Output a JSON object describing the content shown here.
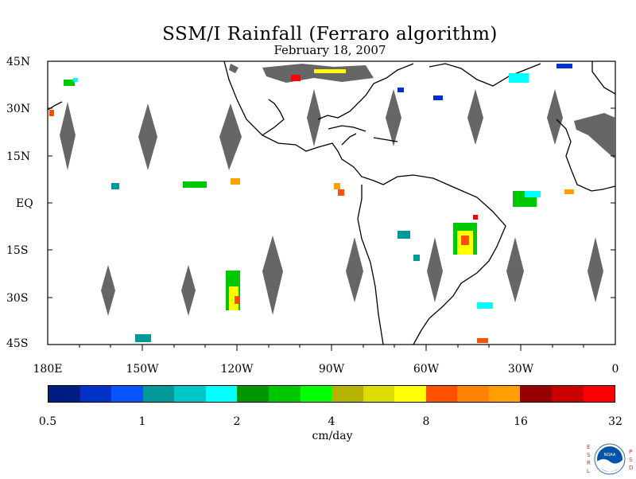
{
  "title": "SSM/I Rainfall (Ferraro algorithm)",
  "date": "February 18, 2007",
  "lat_labels": [
    "45N",
    "30N",
    "15N",
    "EQ",
    "15S",
    "30S",
    "45S"
  ],
  "lon_labels": [
    "180E",
    "150W",
    "120W",
    "90W",
    "60W",
    "30W",
    "0"
  ],
  "colorbar": {
    "tick_labels": [
      "0.5",
      "1",
      "2",
      "4",
      "8",
      "16",
      "32"
    ],
    "units": "cm/day",
    "colors": [
      "#001d85",
      "#0032c8",
      "#0a54ff",
      "#009999",
      "#00c8c8",
      "#00ffff",
      "#009600",
      "#00c800",
      "#00ff00",
      "#b4b400",
      "#dcdc00",
      "#ffff00",
      "#ff5000",
      "#ff8200",
      "#ffa000",
      "#960000",
      "#c80000",
      "#ff0000"
    ]
  },
  "logo": {
    "left_letters": [
      "E",
      "S",
      "R",
      "L"
    ],
    "right_letters": [
      "P",
      "S",
      "D"
    ],
    "badge_text": "NOAA"
  },
  "colors": {
    "missing_data": "#666666",
    "coastline": "#000000"
  }
}
